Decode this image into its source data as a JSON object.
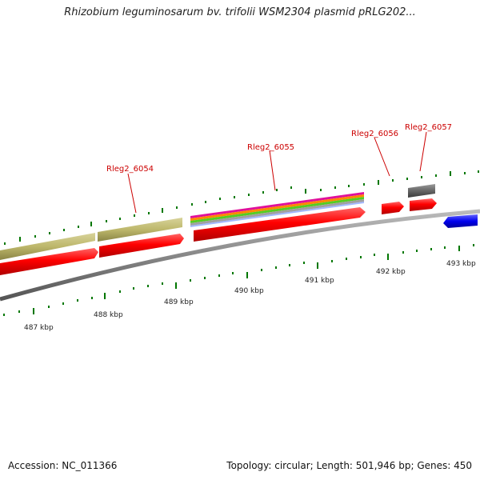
{
  "title": "Rhizobium leguminosarum bv. trifolii WSM2304 plasmid pRLG202...",
  "footer": {
    "accession": "Accession: NC_011366",
    "summary": "Topology: circular; Length: 501,946 bp; Genes: 450"
  },
  "scale": {
    "labels": [
      "487 kbp",
      "488 kbp",
      "489 kbp",
      "490 kbp",
      "491 kbp",
      "492 kbp",
      "493 kbp"
    ]
  },
  "genes": [
    {
      "id": "Rleg2_6054",
      "label": "Rleg2_6054",
      "strand": "+",
      "color": "#ff0000"
    },
    {
      "id": "Rleg2_6055",
      "label": "Rleg2_6055",
      "strand": "+",
      "color": "#ff0000"
    },
    {
      "id": "Rleg2_6056",
      "label": "Rleg2_6056",
      "strand": "+",
      "color": "#ff0000"
    },
    {
      "id": "Rleg2_6057",
      "label": "Rleg2_6057",
      "strand": "+",
      "color": "#ff0000"
    },
    {
      "id": "reverse-gene",
      "label": "",
      "strand": "-",
      "color": "#0000ee"
    }
  ],
  "colors": {
    "backbone": "#888888",
    "cds_forward": "#ff0000",
    "cds_reverse": "#0000ee",
    "feature_olive": "#bdb76b",
    "feature_gray": "#666666",
    "tick": "#007700",
    "label_red": "#cc0000"
  }
}
